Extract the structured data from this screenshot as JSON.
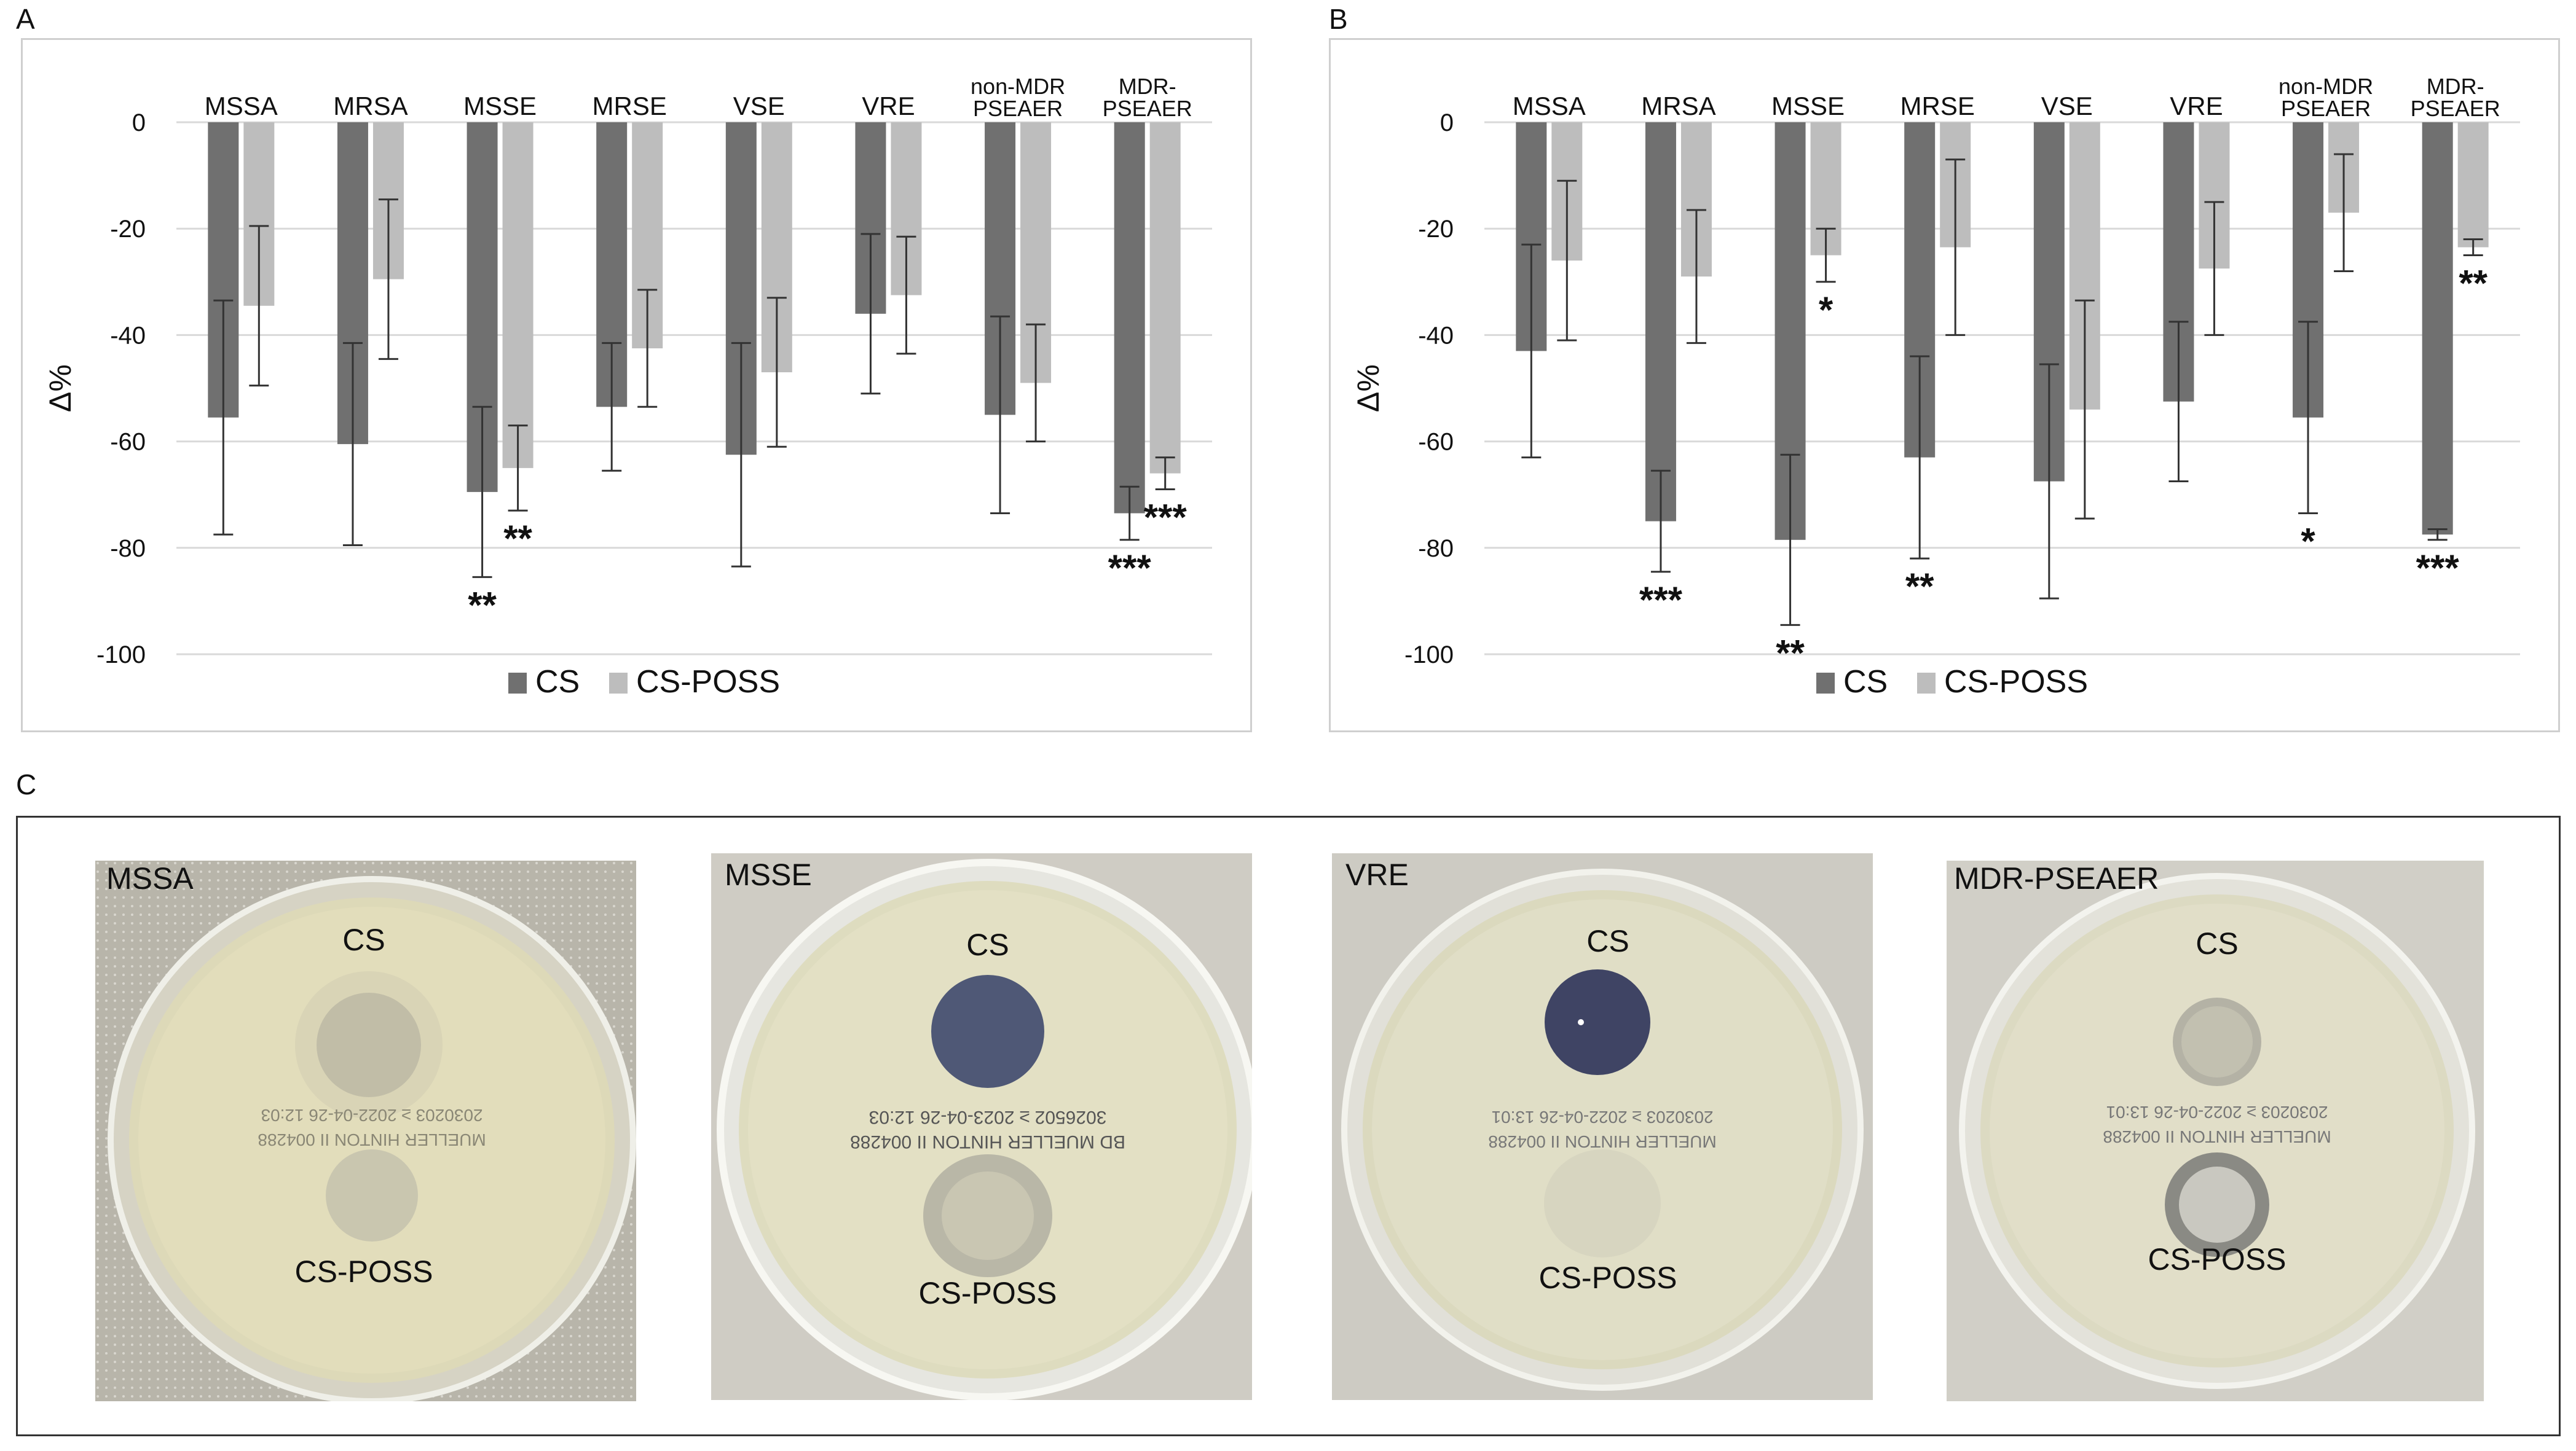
{
  "panel_labels": {
    "a": "A",
    "b": "B",
    "c": "C"
  },
  "colors": {
    "cs": "#707070",
    "cs_poss": "#bdbdbd",
    "grid": "#d9d9d9"
  },
  "chart_data": [
    {
      "type": "bar",
      "panel": "A",
      "categories": [
        [
          "MSSA"
        ],
        [
          "MRSA"
        ],
        [
          "MSSE"
        ],
        [
          "MRSE"
        ],
        [
          "VSE"
        ],
        [
          "VRE"
        ],
        [
          "non-MDR",
          "PSEAER"
        ],
        [
          "MDR-",
          "PSEAER"
        ]
      ],
      "xlabel": "",
      "ylabel": "Δ%",
      "ylim": [
        -100,
        0
      ],
      "yticks": [
        0,
        -20,
        -40,
        -60,
        -80,
        -100
      ],
      "grid": true,
      "legend": "bottom",
      "series": [
        {
          "name": "CS",
          "color": "#707070",
          "values": [
            -55.5,
            -60.5,
            -69.5,
            -53.5,
            -62.5,
            -36,
            -55,
            -73.5
          ],
          "errors": [
            22,
            19,
            16,
            12,
            21,
            15,
            18.5,
            5
          ],
          "significance": [
            "",
            "",
            "**",
            "",
            "",
            "",
            "",
            "***"
          ]
        },
        {
          "name": "CS-POSS",
          "color": "#bdbdbd",
          "values": [
            -34.5,
            -29.5,
            -65,
            -42.5,
            -47,
            -32.5,
            -49,
            -66
          ],
          "errors": [
            15,
            15,
            8,
            11,
            14,
            11,
            11,
            3
          ],
          "significance": [
            "",
            "",
            "**",
            "",
            "",
            "",
            "",
            "***"
          ]
        }
      ]
    },
    {
      "type": "bar",
      "panel": "B",
      "categories": [
        [
          "MSSA"
        ],
        [
          "MRSA"
        ],
        [
          "MSSE"
        ],
        [
          "MRSE"
        ],
        [
          "VSE"
        ],
        [
          "VRE"
        ],
        [
          "non-MDR",
          "PSEAER"
        ],
        [
          "MDR-",
          "PSEAER"
        ]
      ],
      "xlabel": "",
      "ylabel": "Δ%",
      "ylim": [
        -100,
        0
      ],
      "yticks": [
        0,
        -20,
        -40,
        -60,
        -80,
        -100
      ],
      "grid": true,
      "legend": "bottom",
      "series": [
        {
          "name": "CS",
          "color": "#707070",
          "values": [
            -43,
            -75,
            -78.5,
            -63,
            -67.5,
            -52.5,
            -55.5,
            -77.5
          ],
          "errors": [
            20,
            9.5,
            16,
            19,
            22,
            15,
            18,
            1
          ],
          "significance": [
            "",
            "***",
            "**",
            "**",
            "",
            "",
            "*",
            "***"
          ]
        },
        {
          "name": "CS-POSS",
          "color": "#bdbdbd",
          "values": [
            -26,
            -29,
            -25,
            -23.5,
            -54,
            -27.5,
            -17,
            -23.5
          ],
          "errors": [
            15,
            12.5,
            5,
            16.5,
            20.5,
            12.5,
            11,
            1.5
          ],
          "significance": [
            "",
            "",
            "*",
            "",
            "",
            "",
            "",
            "**"
          ]
        }
      ]
    }
  ],
  "photos": [
    {
      "label": "MSSA",
      "top_label": "CS",
      "bottom_label": "CS-POSS"
    },
    {
      "label": "MSSE",
      "top_label": "CS",
      "bottom_label": "CS-POSS"
    },
    {
      "label": "VRE",
      "top_label": "CS",
      "bottom_label": "CS-POSS"
    },
    {
      "label": "MDR-PSEAER",
      "top_label": "CS",
      "bottom_label": "CS-POSS"
    }
  ]
}
